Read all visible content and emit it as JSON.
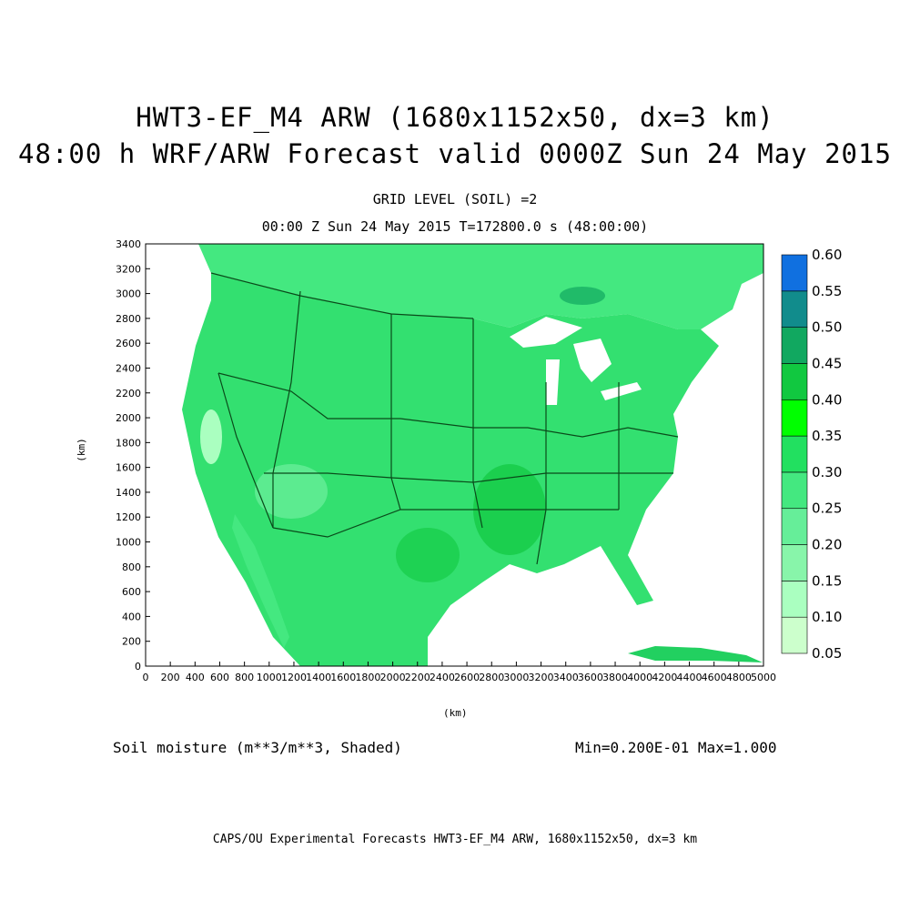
{
  "title": {
    "line1": "HWT3-EF_M4 ARW (1680x1152x50, dx=3 km)",
    "line2": "48:00 h WRF/ARW Forecast valid 0000Z Sun 24 May 2015"
  },
  "subtitle": {
    "line1": "GRID LEVEL (SOIL) =2",
    "line2": "00:00 Z Sun 24 May 2015   T=172800.0 s (48:00:00)"
  },
  "variable_label": "Soil moisture (m**3/m**3, Shaded)",
  "min_max": "Min=0.200E-01 Max=1.000",
  "footer": "CAPS/OU Experimental Forecasts  HWT3-EF_M4 ARW, 1680x1152x50, dx=3 km",
  "chart_data": {
    "type": "heatmap",
    "xlabel": "(km)",
    "ylabel": "(km)",
    "xlim": [
      0,
      5000
    ],
    "ylim": [
      0,
      3400
    ],
    "x_ticks": [
      0,
      200,
      400,
      600,
      800,
      1000,
      1200,
      1400,
      1600,
      1800,
      2000,
      2200,
      2400,
      2600,
      2800,
      3000,
      3200,
      3400,
      3600,
      3800,
      4000,
      4200,
      4400,
      4600,
      4800,
      5000
    ],
    "y_ticks": [
      0,
      200,
      400,
      600,
      800,
      1000,
      1200,
      1400,
      1600,
      1800,
      2000,
      2200,
      2400,
      2600,
      2800,
      3000,
      3200,
      3400
    ],
    "colorbar": {
      "levels": [
        "0.05",
        "0.10",
        "0.15",
        "0.20",
        "0.25",
        "0.30",
        "0.35",
        "0.40",
        "0.45",
        "0.50",
        "0.55",
        "0.60"
      ],
      "colors": [
        "#ccffcc",
        "#aaffc0",
        "#88f5aa",
        "#66ee99",
        "#44e880",
        "#22e060",
        "#00ff00",
        "#11c840",
        "#11a860",
        "#118c8c",
        "#1070e0"
      ]
    }
  }
}
